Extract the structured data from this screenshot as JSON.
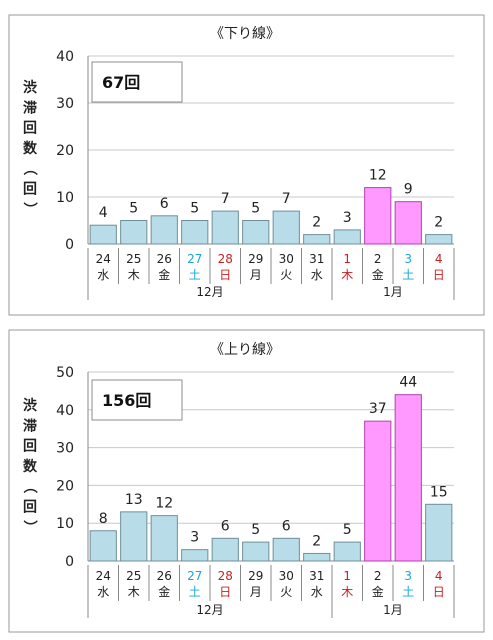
{
  "colors": {
    "bar_normal": "#b8dce8",
    "bar_highlight": "#ff99ff",
    "bar_stroke": "#6c8f9b",
    "highlight_stroke": "#b040b0",
    "text_default": "#222222",
    "saturday": "#1aa7d6",
    "holiday": "#cc1f1f"
  },
  "chart_data": [
    {
      "type": "bar",
      "title": "《下り線》",
      "ylabel": "渋滞回数（回）",
      "total_label": "67回",
      "ylim": [
        0,
        40
      ],
      "yticks": [
        "0",
        "10",
        "20",
        "30",
        "40"
      ],
      "categories": [
        {
          "day": "24",
          "weekday": "水",
          "kind": "normal"
        },
        {
          "day": "25",
          "weekday": "木",
          "kind": "normal"
        },
        {
          "day": "26",
          "weekday": "金",
          "kind": "normal"
        },
        {
          "day": "27",
          "weekday": "土",
          "kind": "saturday"
        },
        {
          "day": "28",
          "weekday": "日",
          "kind": "holiday"
        },
        {
          "day": "29",
          "weekday": "月",
          "kind": "normal"
        },
        {
          "day": "30",
          "weekday": "火",
          "kind": "normal"
        },
        {
          "day": "31",
          "weekday": "水",
          "kind": "normal"
        },
        {
          "day": "1",
          "weekday": "木",
          "kind": "holiday"
        },
        {
          "day": "2",
          "weekday": "金",
          "kind": "normal"
        },
        {
          "day": "3",
          "weekday": "土",
          "kind": "saturday"
        },
        {
          "day": "4",
          "weekday": "日",
          "kind": "holiday"
        }
      ],
      "values": [
        4,
        5,
        6,
        5,
        7,
        5,
        7,
        2,
        3,
        12,
        9,
        2
      ],
      "highlighted": [
        9,
        10
      ],
      "months": [
        {
          "label": "12月",
          "start": 0,
          "end": 7
        },
        {
          "label": "1月",
          "start": 8,
          "end": 11
        }
      ]
    },
    {
      "type": "bar",
      "title": "《上り線》",
      "ylabel": "渋滞回数（回）",
      "total_label": "156回",
      "ylim": [
        0,
        50
      ],
      "yticks": [
        "0",
        "10",
        "20",
        "30",
        "40",
        "50"
      ],
      "categories": [
        {
          "day": "24",
          "weekday": "水",
          "kind": "normal"
        },
        {
          "day": "25",
          "weekday": "木",
          "kind": "normal"
        },
        {
          "day": "26",
          "weekday": "金",
          "kind": "normal"
        },
        {
          "day": "27",
          "weekday": "土",
          "kind": "saturday"
        },
        {
          "day": "28",
          "weekday": "日",
          "kind": "holiday"
        },
        {
          "day": "29",
          "weekday": "月",
          "kind": "normal"
        },
        {
          "day": "30",
          "weekday": "火",
          "kind": "normal"
        },
        {
          "day": "31",
          "weekday": "水",
          "kind": "normal"
        },
        {
          "day": "1",
          "weekday": "木",
          "kind": "holiday"
        },
        {
          "day": "2",
          "weekday": "金",
          "kind": "normal"
        },
        {
          "day": "3",
          "weekday": "土",
          "kind": "saturday"
        },
        {
          "day": "4",
          "weekday": "日",
          "kind": "holiday"
        }
      ],
      "values": [
        8,
        13,
        12,
        3,
        6,
        5,
        6,
        2,
        5,
        37,
        44,
        15
      ],
      "highlighted": [
        9,
        10
      ],
      "months": [
        {
          "label": "12月",
          "start": 0,
          "end": 7
        },
        {
          "label": "1月",
          "start": 8,
          "end": 11
        }
      ]
    }
  ]
}
